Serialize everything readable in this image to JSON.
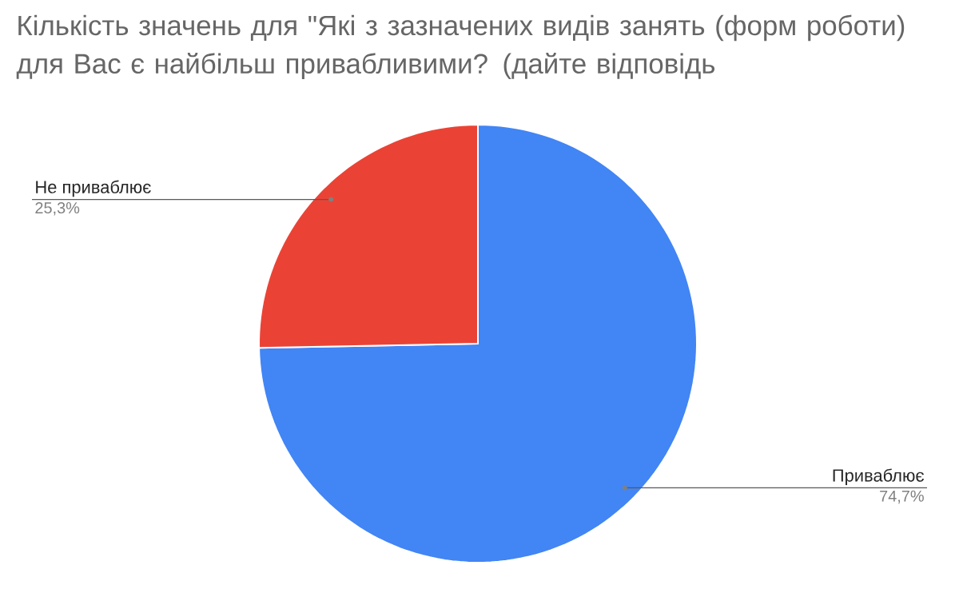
{
  "chart_data": {
    "type": "pie",
    "title": "Кількість значень для \"Які з зазначених видів занять (форм роботи) для Вас є найбільш привабливими? (дайте відповідь",
    "categories": [
      "Приваблює",
      "Не приваблює"
    ],
    "values": [
      74.7,
      25.3
    ],
    "colors": [
      "#4285f4",
      "#ea4335"
    ],
    "value_labels": [
      "74,7%",
      "25,3%"
    ]
  }
}
